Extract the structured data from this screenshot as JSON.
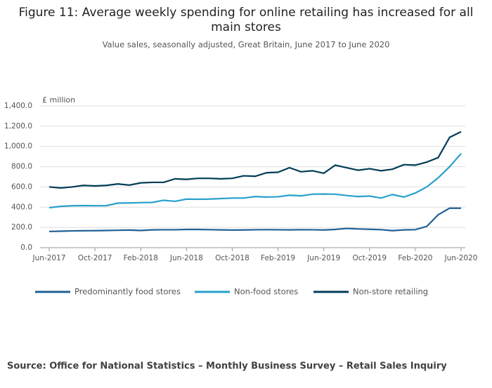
{
  "chart_data": {
    "type": "line",
    "title": "Figure 11: Average weekly spending for online retailing has increased for all main stores",
    "subtitle": "Value sales, seasonally adjusted, Great Britain, June 2017 to June 2020",
    "y_unit": "£ million",
    "source": "Source: Office for National Statistics – Monthly Business Survey – Retail Sales Inquiry",
    "categories": [
      "Jun-2017",
      null,
      null,
      null,
      "Oct-2017",
      null,
      null,
      null,
      "Feb-2018",
      null,
      null,
      null,
      "Jun-2018",
      null,
      null,
      null,
      "Oct-2018",
      null,
      null,
      null,
      "Feb-2019",
      null,
      null,
      null,
      "Jun-2019",
      null,
      null,
      null,
      "Oct-2019",
      null,
      null,
      null,
      "Feb-2020",
      null,
      null,
      null,
      "Jun-2020"
    ],
    "series": [
      {
        "name": "Predominantly food stores",
        "color": "#206095",
        "values": [
          160,
          163,
          166,
          167,
          168,
          170,
          172,
          174,
          170,
          176,
          177,
          177,
          180,
          180,
          178,
          176,
          174,
          175,
          177,
          178,
          177,
          176,
          178,
          177,
          175,
          180,
          190,
          185,
          182,
          178,
          168,
          176,
          178,
          210,
          325,
          390,
          390
        ]
      },
      {
        "name": "Non-food stores",
        "color": "#27a0cc",
        "values": [
          395,
          408,
          414,
          416,
          414,
          415,
          440,
          442,
          445,
          447,
          468,
          458,
          480,
          478,
          480,
          485,
          490,
          490,
          505,
          500,
          503,
          518,
          512,
          528,
          530,
          528,
          515,
          505,
          510,
          490,
          525,
          500,
          540,
          600,
          690,
          800,
          930
        ]
      },
      {
        "name": "Non-store retailing",
        "color": "#003c57",
        "values": [
          600,
          590,
          600,
          615,
          610,
          615,
          630,
          618,
          640,
          645,
          645,
          680,
          675,
          685,
          685,
          680,
          685,
          710,
          705,
          740,
          745,
          790,
          750,
          760,
          735,
          815,
          790,
          765,
          780,
          760,
          775,
          820,
          815,
          845,
          890,
          1090,
          1145
        ]
      }
    ],
    "ylim": [
      0,
      1400
    ],
    "yticks": [
      {
        "value": 0,
        "label": "0.0"
      },
      {
        "value": 200,
        "label": "200.0"
      },
      {
        "value": 400,
        "label": "400.0"
      },
      {
        "value": 600,
        "label": "600.0"
      },
      {
        "value": 800,
        "label": "800.0"
      },
      {
        "value": 1000,
        "label": "1,000.0"
      },
      {
        "value": 1200,
        "label": "1,200.0"
      },
      {
        "value": 1400,
        "label": "1,400.0"
      }
    ],
    "grid": true
  }
}
